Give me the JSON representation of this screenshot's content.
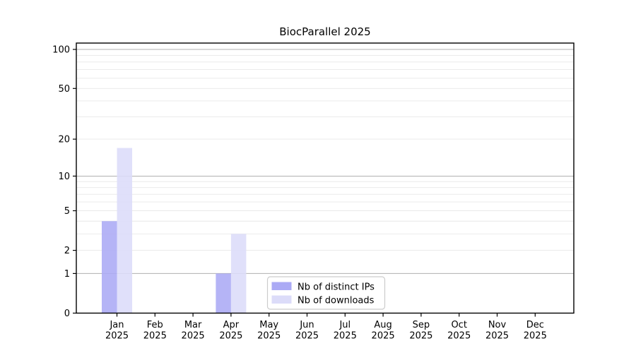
{
  "chart_data": {
    "type": "bar",
    "title": "BiocParallel 2025",
    "categories": [
      "Jan 2025",
      "Feb 2025",
      "Mar 2025",
      "Apr 2025",
      "May 2025",
      "Jun 2025",
      "Jul 2025",
      "Aug 2025",
      "Sep 2025",
      "Oct 2025",
      "Nov 2025",
      "Dec 2025"
    ],
    "series": [
      {
        "name": "Nb of distinct IPs",
        "color": "#abaaf5",
        "values": [
          4,
          0,
          0,
          1,
          0,
          0,
          0,
          0,
          0,
          0,
          0,
          0
        ]
      },
      {
        "name": "Nb of downloads",
        "color": "#dcdcf9",
        "values": [
          17,
          0,
          0,
          3,
          0,
          0,
          0,
          0,
          0,
          0,
          0,
          0
        ]
      }
    ],
    "yscale": "log10(1+v)",
    "ylim": [
      0,
      115
    ],
    "yticks": [
      0,
      1,
      2,
      5,
      10,
      20,
      50,
      100
    ],
    "major_gridlines": [
      1,
      10,
      100
    ],
    "minor_gridlines": [
      2,
      3,
      4,
      5,
      6,
      7,
      8,
      9,
      20,
      30,
      40,
      50,
      60,
      70,
      80,
      90
    ],
    "legend_position": "lower center",
    "colors": {
      "distinct_ips": "#abaaf5",
      "downloads": "#dcdcf9",
      "major_grid": "#b0b0b0",
      "minor_grid": "#e8e8e8",
      "axis": "#000000",
      "legend_border": "#cccccc",
      "background": "#ffffff"
    }
  }
}
